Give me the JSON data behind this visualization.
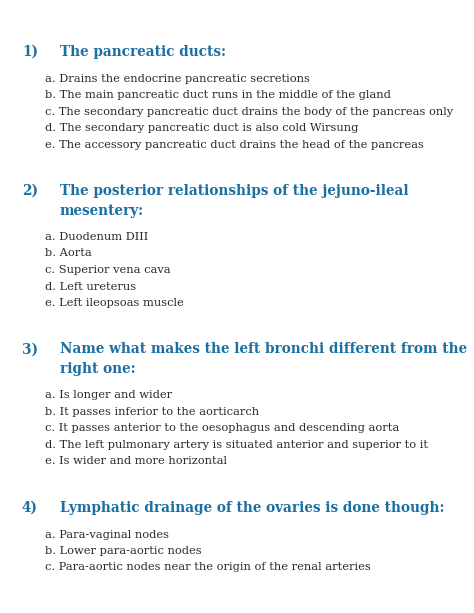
{
  "background_color": "#ffffff",
  "heading_color": "#1a6fa3",
  "body_color": "#2a2a2a",
  "questions": [
    {
      "number": "1)",
      "title": "The pancreatic ducts:",
      "title_lines": [
        "The pancreatic ducts:"
      ],
      "options": [
        "a. Drains the endocrine pancreatic secretions",
        "b. The main pancreatic duct runs in the middle of the gland",
        "c. The secondary pancreatic duct drains the body of the pancreas only",
        "d. The secondary pancreatic duct is also cold Wirsung",
        "e. The accessory pancreatic duct drains the head of the pancreas"
      ]
    },
    {
      "number": "2)",
      "title_lines": [
        "The posterior relationships of the jejuno-ileal",
        "mesentery:"
      ],
      "options": [
        "a. Duodenum DIII",
        "b. Aorta",
        "c. Superior vena cava",
        "d. Left ureterus",
        "e. Left ileopsoas muscle"
      ]
    },
    {
      "number": "3)",
      "title_lines": [
        "Name what makes the left bronchi different from the",
        "right one:"
      ],
      "options": [
        "a. Is longer and wider",
        "b. It passes inferior to the aorticarch",
        "c. It passes anterior to the oesophagus and descending aorta",
        "d. The left pulmonary artery is situated anterior and superior to it",
        "e. Is wider and more horizontal"
      ]
    },
    {
      "number": "4)",
      "title_lines": [
        "Lymphatic drainage of the ovaries is done though:"
      ],
      "options": [
        "a. Para-vaginal nodes",
        "b. Lower para-aortic nodes",
        "c. Para-aortic nodes near the origin of the renal arteries"
      ]
    }
  ],
  "heading_fontsize": 9.8,
  "body_fontsize": 8.2,
  "fig_width": 4.74,
  "fig_height": 6.13,
  "dpi": 100
}
